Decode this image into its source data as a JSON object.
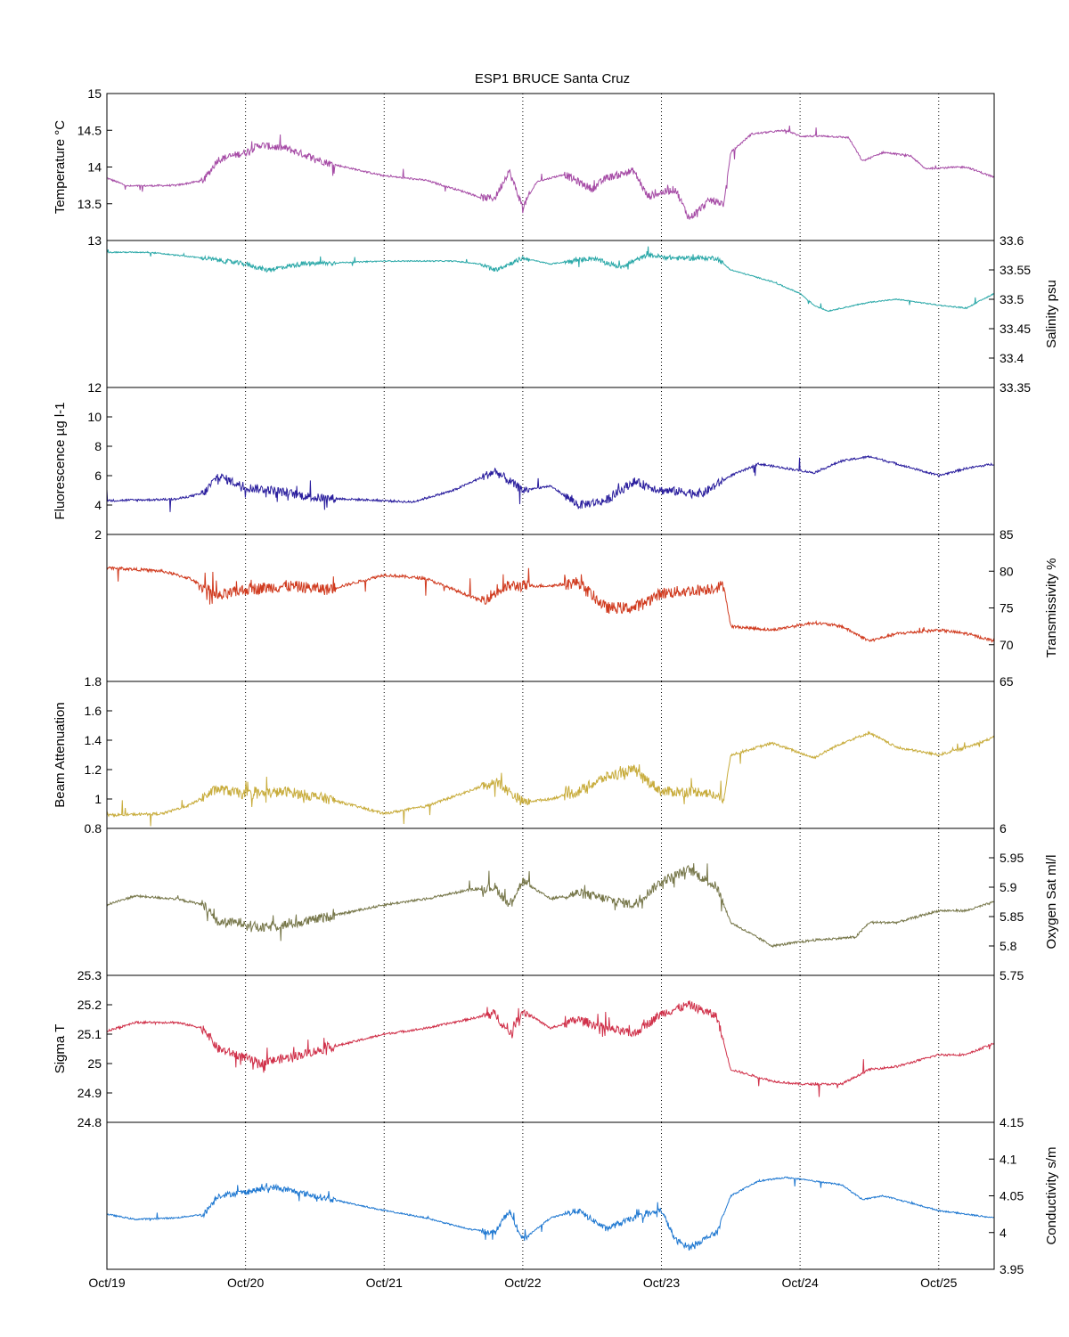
{
  "chart_data": {
    "type": "line",
    "title": "ESP1 BRUCE Santa Cruz",
    "x": {
      "range_days": [
        0,
        6.4
      ],
      "tick_labels": [
        "Oct/19",
        "Oct/20",
        "Oct/21",
        "Oct/22",
        "Oct/23",
        "Oct/24",
        "Oct/25"
      ],
      "tick_days": [
        0,
        1,
        2,
        3,
        4,
        5,
        6
      ],
      "grid": "dotted vertical"
    },
    "panels": [
      {
        "name": "temperature",
        "ylabel": "Temperature °C",
        "axis_side": "left",
        "ylim": [
          13,
          15
        ],
        "ticks": [
          13,
          13.5,
          14,
          14.5,
          15
        ],
        "tick_labels": [
          "13",
          "13.5",
          "14",
          "14.5",
          "15"
        ],
        "color": "#a64ca6",
        "noise": 0.05,
        "knots": [
          [
            0,
            13.85
          ],
          [
            0.15,
            13.74
          ],
          [
            0.5,
            13.75
          ],
          [
            0.7,
            13.82
          ],
          [
            0.8,
            14.1
          ],
          [
            1.0,
            14.2
          ],
          [
            1.1,
            14.3
          ],
          [
            1.3,
            14.25
          ],
          [
            1.6,
            14.05
          ],
          [
            2.0,
            13.88
          ],
          [
            2.3,
            13.82
          ],
          [
            2.6,
            13.65
          ],
          [
            2.7,
            13.58
          ],
          [
            2.8,
            13.58
          ],
          [
            2.9,
            13.95
          ],
          [
            3.0,
            13.45
          ],
          [
            3.1,
            13.8
          ],
          [
            3.3,
            13.9
          ],
          [
            3.5,
            13.7
          ],
          [
            3.6,
            13.85
          ],
          [
            3.8,
            13.95
          ],
          [
            3.9,
            13.6
          ],
          [
            4.1,
            13.7
          ],
          [
            4.2,
            13.3
          ],
          [
            4.35,
            13.55
          ],
          [
            4.45,
            13.5
          ],
          [
            4.5,
            14.2
          ],
          [
            4.65,
            14.45
          ],
          [
            4.9,
            14.5
          ],
          [
            5.0,
            14.42
          ],
          [
            5.2,
            14.42
          ],
          [
            5.35,
            14.4
          ],
          [
            5.45,
            14.08
          ],
          [
            5.6,
            14.2
          ],
          [
            5.8,
            14.15
          ],
          [
            5.9,
            13.98
          ],
          [
            6.2,
            14.0
          ],
          [
            6.4,
            13.86
          ]
        ]
      },
      {
        "name": "salinity",
        "ylabel": "Salinity psu",
        "axis_side": "right",
        "ylim": [
          33.35,
          33.6
        ],
        "ticks": [
          33.35,
          33.4,
          33.45,
          33.5,
          33.55,
          33.6
        ],
        "tick_labels": [
          "33.35",
          "33.4",
          "33.45",
          "33.5",
          "33.55",
          "33.6"
        ],
        "color": "#2aa8a8",
        "noise": 0.004,
        "knots": [
          [
            0,
            33.58
          ],
          [
            0.3,
            33.58
          ],
          [
            0.7,
            33.57
          ],
          [
            1.0,
            33.56
          ],
          [
            1.15,
            33.55
          ],
          [
            1.4,
            33.56
          ],
          [
            2.0,
            33.565
          ],
          [
            2.5,
            33.565
          ],
          [
            2.7,
            33.56
          ],
          [
            2.8,
            33.55
          ],
          [
            3.0,
            33.57
          ],
          [
            3.2,
            33.56
          ],
          [
            3.5,
            33.57
          ],
          [
            3.7,
            33.555
          ],
          [
            3.9,
            33.575
          ],
          [
            4.1,
            33.57
          ],
          [
            4.4,
            33.57
          ],
          [
            4.5,
            33.55
          ],
          [
            4.8,
            33.53
          ],
          [
            5.0,
            33.51
          ],
          [
            5.1,
            33.49
          ],
          [
            5.2,
            33.48
          ],
          [
            5.5,
            33.495
          ],
          [
            5.7,
            33.5
          ],
          [
            6.0,
            33.49
          ],
          [
            6.2,
            33.485
          ],
          [
            6.4,
            33.51
          ]
        ]
      },
      {
        "name": "fluorescence",
        "ylabel": "Fluorescence µg l-1",
        "axis_side": "left",
        "ylim": [
          2,
          12
        ],
        "ticks": [
          2,
          4,
          6,
          8,
          10,
          12
        ],
        "tick_labels": [
          "2",
          "4",
          "6",
          "8",
          "10",
          "12"
        ],
        "color": "#2b1f9e",
        "noise": 0.3,
        "knots": [
          [
            0,
            4.3
          ],
          [
            0.5,
            4.4
          ],
          [
            0.7,
            4.8
          ],
          [
            0.8,
            6.0
          ],
          [
            1.0,
            5.2
          ],
          [
            1.2,
            5.0
          ],
          [
            1.5,
            4.5
          ],
          [
            2.0,
            4.3
          ],
          [
            2.2,
            4.2
          ],
          [
            2.5,
            5.0
          ],
          [
            2.8,
            6.3
          ],
          [
            3.0,
            5.0
          ],
          [
            3.2,
            5.3
          ],
          [
            3.4,
            4.0
          ],
          [
            3.6,
            4.3
          ],
          [
            3.8,
            5.6
          ],
          [
            4.0,
            5.0
          ],
          [
            4.3,
            4.8
          ],
          [
            4.5,
            6.0
          ],
          [
            4.7,
            6.8
          ],
          [
            4.9,
            6.5
          ],
          [
            5.1,
            6.2
          ],
          [
            5.3,
            7.0
          ],
          [
            5.5,
            7.3
          ],
          [
            5.7,
            6.8
          ],
          [
            6.0,
            6.0
          ],
          [
            6.2,
            6.5
          ],
          [
            6.4,
            6.8
          ]
        ]
      },
      {
        "name": "transmissivity",
        "ylabel": "Transmissivity %",
        "axis_side": "right",
        "ylim": [
          65,
          85
        ],
        "ticks": [
          65,
          70,
          75,
          80,
          85
        ],
        "tick_labels": [
          "65",
          "70",
          "75",
          "80",
          "85"
        ],
        "color": "#d03a1e",
        "noise": 0.8,
        "knots": [
          [
            0,
            80.5
          ],
          [
            0.4,
            80.0
          ],
          [
            0.6,
            79.0
          ],
          [
            0.8,
            76.5
          ],
          [
            1.0,
            77.5
          ],
          [
            1.3,
            78.0
          ],
          [
            1.6,
            77.5
          ],
          [
            2.0,
            79.5
          ],
          [
            2.3,
            79.0
          ],
          [
            2.5,
            77.5
          ],
          [
            2.7,
            76.0
          ],
          [
            2.9,
            78.0
          ],
          [
            3.2,
            78.0
          ],
          [
            3.4,
            78.5
          ],
          [
            3.6,
            75.0
          ],
          [
            3.8,
            75.0
          ],
          [
            4.0,
            77.0
          ],
          [
            4.3,
            77.5
          ],
          [
            4.45,
            78.0
          ],
          [
            4.5,
            72.5
          ],
          [
            4.8,
            72.0
          ],
          [
            5.1,
            73.0
          ],
          [
            5.3,
            72.5
          ],
          [
            5.5,
            70.5
          ],
          [
            5.7,
            71.5
          ],
          [
            6.0,
            72.0
          ],
          [
            6.2,
            71.5
          ],
          [
            6.4,
            70.5
          ]
        ]
      },
      {
        "name": "beam_attenuation",
        "ylabel": "Beam Attenuation",
        "axis_side": "left",
        "ylim": [
          0.8,
          1.8
        ],
        "ticks": [
          0.8,
          1.0,
          1.2,
          1.4,
          1.6,
          1.8
        ],
        "tick_labels": [
          "0.8",
          "1",
          "1.2",
          "1.4",
          "1.6",
          "1.8"
        ],
        "color": "#c8ac3c",
        "noise": 0.035,
        "knots": [
          [
            0,
            0.89
          ],
          [
            0.4,
            0.9
          ],
          [
            0.6,
            0.96
          ],
          [
            0.8,
            1.07
          ],
          [
            1.0,
            1.03
          ],
          [
            1.3,
            1.05
          ],
          [
            1.6,
            1.0
          ],
          [
            2.0,
            0.9
          ],
          [
            2.3,
            0.95
          ],
          [
            2.6,
            1.05
          ],
          [
            2.8,
            1.12
          ],
          [
            3.0,
            0.98
          ],
          [
            3.2,
            1.0
          ],
          [
            3.4,
            1.05
          ],
          [
            3.6,
            1.15
          ],
          [
            3.8,
            1.2
          ],
          [
            4.0,
            1.05
          ],
          [
            4.3,
            1.05
          ],
          [
            4.45,
            1.0
          ],
          [
            4.5,
            1.3
          ],
          [
            4.8,
            1.38
          ],
          [
            5.1,
            1.28
          ],
          [
            5.3,
            1.38
          ],
          [
            5.5,
            1.45
          ],
          [
            5.7,
            1.35
          ],
          [
            6.0,
            1.3
          ],
          [
            6.2,
            1.35
          ],
          [
            6.4,
            1.42
          ]
        ]
      },
      {
        "name": "oxygen_sat",
        "ylabel": "Oxygen Sat ml/l",
        "axis_side": "right",
        "ylim": [
          5.75,
          6
        ],
        "ticks": [
          5.75,
          5.8,
          5.85,
          5.9,
          5.95,
          6
        ],
        "tick_labels": [
          "5.75",
          "5.8",
          "5.85",
          "5.9",
          "5.95",
          "6"
        ],
        "color": "#77774a",
        "noise": 0.008,
        "knots": [
          [
            0,
            5.87
          ],
          [
            0.2,
            5.885
          ],
          [
            0.5,
            5.88
          ],
          [
            0.7,
            5.87
          ],
          [
            0.8,
            5.84
          ],
          [
            1.0,
            5.84
          ],
          [
            1.1,
            5.83
          ],
          [
            1.4,
            5.84
          ],
          [
            2.0,
            5.87
          ],
          [
            2.3,
            5.88
          ],
          [
            2.6,
            5.895
          ],
          [
            2.8,
            5.9
          ],
          [
            2.9,
            5.87
          ],
          [
            3.0,
            5.91
          ],
          [
            3.2,
            5.88
          ],
          [
            3.4,
            5.89
          ],
          [
            3.6,
            5.88
          ],
          [
            3.8,
            5.87
          ],
          [
            4.0,
            5.91
          ],
          [
            4.2,
            5.93
          ],
          [
            4.4,
            5.9
          ],
          [
            4.5,
            5.84
          ],
          [
            4.8,
            5.8
          ],
          [
            5.1,
            5.81
          ],
          [
            5.4,
            5.815
          ],
          [
            5.5,
            5.84
          ],
          [
            5.7,
            5.84
          ],
          [
            6.0,
            5.86
          ],
          [
            6.2,
            5.86
          ],
          [
            6.4,
            5.875
          ]
        ]
      },
      {
        "name": "sigma_t",
        "ylabel": "Sigma T",
        "axis_side": "left",
        "ylim": [
          24.8,
          25.3
        ],
        "ticks": [
          24.8,
          24.9,
          25.0,
          25.1,
          25.2,
          25.3
        ],
        "tick_labels": [
          "24.8",
          "24.9",
          "25",
          "25.1",
          "25.2",
          "25.3"
        ],
        "color": "#d0314a",
        "noise": 0.015,
        "knots": [
          [
            0,
            25.11
          ],
          [
            0.2,
            25.14
          ],
          [
            0.5,
            25.14
          ],
          [
            0.7,
            25.12
          ],
          [
            0.8,
            25.05
          ],
          [
            1.0,
            25.02
          ],
          [
            1.1,
            25.0
          ],
          [
            1.4,
            25.03
          ],
          [
            2.0,
            25.1
          ],
          [
            2.3,
            25.12
          ],
          [
            2.6,
            25.15
          ],
          [
            2.8,
            25.17
          ],
          [
            2.9,
            25.1
          ],
          [
            3.0,
            25.18
          ],
          [
            3.2,
            25.12
          ],
          [
            3.4,
            25.15
          ],
          [
            3.6,
            25.12
          ],
          [
            3.8,
            25.1
          ],
          [
            4.0,
            25.17
          ],
          [
            4.2,
            25.2
          ],
          [
            4.4,
            25.16
          ],
          [
            4.5,
            24.98
          ],
          [
            4.8,
            24.94
          ],
          [
            5.0,
            24.93
          ],
          [
            5.3,
            24.93
          ],
          [
            5.5,
            24.98
          ],
          [
            5.7,
            24.99
          ],
          [
            6.0,
            25.03
          ],
          [
            6.2,
            25.03
          ],
          [
            6.4,
            25.07
          ]
        ]
      },
      {
        "name": "conductivity",
        "ylabel": "Conductivity s/m",
        "axis_side": "right",
        "ylim": [
          3.95,
          4.15
        ],
        "ticks": [
          3.95,
          4.0,
          4.05,
          4.1,
          4.15
        ],
        "tick_labels": [
          "3.95",
          "4",
          "4.05",
          "4.1",
          "4.15"
        ],
        "color": "#1f78d1",
        "noise": 0.004,
        "knots": [
          [
            0,
            4.025
          ],
          [
            0.2,
            4.018
          ],
          [
            0.5,
            4.02
          ],
          [
            0.7,
            4.025
          ],
          [
            0.8,
            4.05
          ],
          [
            1.0,
            4.055
          ],
          [
            1.2,
            4.062
          ],
          [
            1.5,
            4.05
          ],
          [
            2.0,
            4.03
          ],
          [
            2.3,
            4.02
          ],
          [
            2.6,
            4.005
          ],
          [
            2.8,
            4.0
          ],
          [
            2.9,
            4.03
          ],
          [
            3.0,
            3.99
          ],
          [
            3.2,
            4.02
          ],
          [
            3.4,
            4.03
          ],
          [
            3.6,
            4.005
          ],
          [
            3.8,
            4.02
          ],
          [
            4.0,
            4.03
          ],
          [
            4.1,
            3.99
          ],
          [
            4.2,
            3.98
          ],
          [
            4.4,
            4.0
          ],
          [
            4.5,
            4.05
          ],
          [
            4.7,
            4.07
          ],
          [
            4.9,
            4.075
          ],
          [
            5.1,
            4.07
          ],
          [
            5.3,
            4.065
          ],
          [
            5.45,
            4.045
          ],
          [
            5.6,
            4.05
          ],
          [
            5.8,
            4.04
          ],
          [
            6.0,
            4.03
          ],
          [
            6.4,
            4.02
          ]
        ]
      }
    ]
  }
}
